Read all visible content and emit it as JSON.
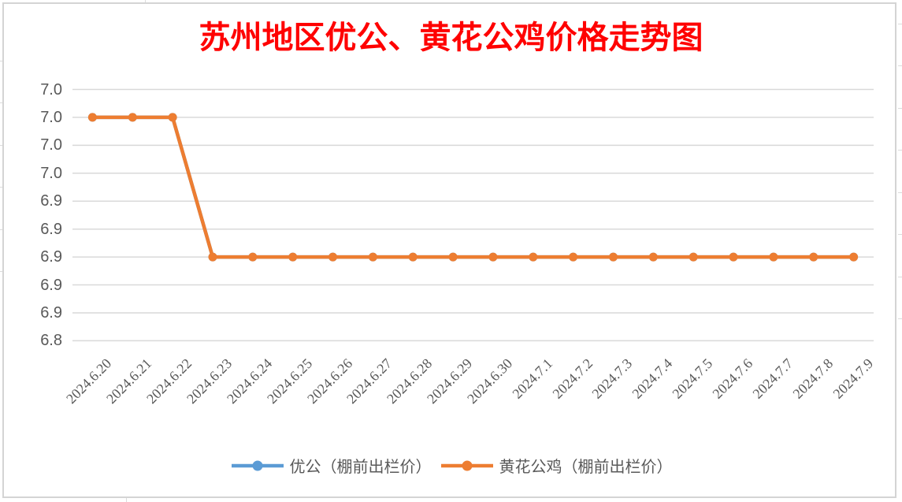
{
  "title": {
    "text": "苏州地区优公、黄花公鸡价格走势图",
    "color": "#ff0000"
  },
  "chart_data": {
    "type": "line",
    "categories": [
      "2024.6.20",
      "2024.6.21",
      "2024.6.22",
      "2024.6.23",
      "2024.6.24",
      "2024.6.25",
      "2024.6.26",
      "2024.6.27",
      "2024.6.28",
      "2024.6.29",
      "2024.6.30",
      "2024.7.1",
      "2024.7.2",
      "2024.7.3",
      "2024.7.4",
      "2024.7.5",
      "2024.7.6",
      "2024.7.7",
      "2024.7.8",
      "2024.7.9"
    ],
    "series": [
      {
        "name": "优公（棚前出栏价）",
        "color": "#5b9bd5",
        "marker": "circle",
        "values": [
          7.0,
          7.0,
          7.0,
          6.9,
          6.9,
          6.9,
          6.9,
          6.9,
          6.9,
          6.9,
          6.9,
          6.9,
          6.9,
          6.9,
          6.9,
          6.9,
          6.9,
          6.9,
          6.9,
          6.9
        ]
      },
      {
        "name": "黄花公鸡（棚前出栏价）",
        "color": "#ed7d31",
        "marker": "circle",
        "values": [
          7.0,
          7.0,
          7.0,
          6.9,
          6.9,
          6.9,
          6.9,
          6.9,
          6.9,
          6.9,
          6.9,
          6.9,
          6.9,
          6.9,
          6.9,
          6.9,
          6.9,
          6.9,
          6.9,
          6.9
        ]
      }
    ],
    "title": "苏州地区优公、黄花公鸡价格走势图",
    "xlabel": "",
    "ylabel": "",
    "ylim": [
      6.84,
      7.02
    ],
    "y_tick_step": 0.02,
    "y_tick_labels_top_to_bottom": [
      "7.0",
      "7.0",
      "7.0",
      "7.0",
      "6.9",
      "6.9",
      "6.9",
      "6.9",
      "6.9",
      "6.8"
    ],
    "grid": "horizontal",
    "gridline_color": "#d9d9d9",
    "legend_position": "bottom",
    "note_colors": {
      "axis_text": "#595959"
    }
  }
}
